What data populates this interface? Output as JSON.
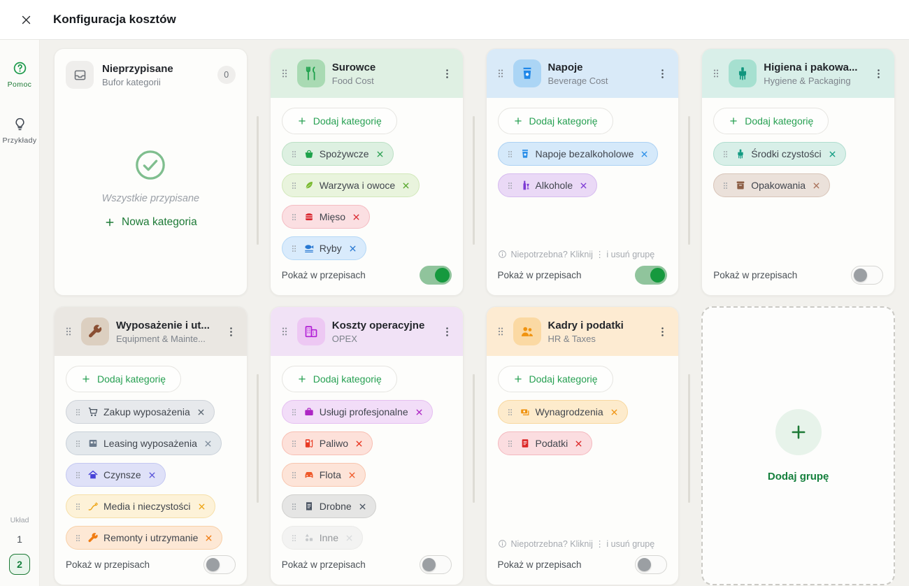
{
  "header": {
    "title": "Konfiguracja kosztów",
    "close_icon": "close-icon"
  },
  "sidebar": {
    "help_label": "Pomoc",
    "examples_label": "Przykłady",
    "layout_label": "Układ",
    "layout_option_1": "1",
    "layout_option_2": "2",
    "active_layout": "2",
    "help_icon": "question-circle-icon",
    "examples_icon": "lightbulb-icon"
  },
  "board": {
    "add_category_label": "Dodaj kategorię",
    "show_in_recipes_label": "Pokaż w przepisach",
    "delete_hint": "Niepotrzebna? Kliknij ⋮ i usuń grupę",
    "add_group_label": "Dodaj grupę",
    "unassigned": {
      "title": "Nieprzypisane",
      "subtitle": "Bufor kategorii",
      "count": "0",
      "icon": "inbox-icon",
      "empty_state_icon": "check-circle-icon",
      "empty_state_text": "Wszystkie przypisane",
      "new_category_label": "Nowa kategoria"
    },
    "accent_green": "#1d7a36",
    "groups": [
      {
        "title": "Surowce",
        "subtitle": "Food Cost",
        "icon": "utensils-icon",
        "colors": {
          "header": "#dff0e3",
          "tile": "#a9dab3",
          "icon": "#21a24e"
        },
        "toggle_on": true,
        "show_delete_hint": false,
        "chips": [
          {
            "label": "Spożywcze",
            "icon": "basket-icon",
            "bg": "#ddf0e1",
            "border": "#bce0c5",
            "icon_color": "#1ea24a",
            "x_color": "#2ba052",
            "faded": false
          },
          {
            "label": "Warzywa i owoce",
            "icon": "leaf-icon",
            "bg": "#e9f4dd",
            "border": "#d2e8ba",
            "icon_color": "#79ba2e",
            "x_color": "#57a82c",
            "faded": false
          },
          {
            "label": "Mięso",
            "icon": "burger-icon",
            "bg": "#fbdfe2",
            "border": "#f4bcc2",
            "icon_color": "#d9272e",
            "x_color": "#d9272e",
            "faded": false
          },
          {
            "label": "Ryby",
            "icon": "fish-icon",
            "bg": "#d9ebfc",
            "border": "#b5d8f6",
            "icon_color": "#2979d2",
            "x_color": "#2979d2",
            "faded": false
          }
        ]
      },
      {
        "title": "Napoje",
        "subtitle": "Beverage Cost",
        "icon": "cup-icon",
        "colors": {
          "header": "#d9eaf8",
          "tile": "#abd5f5",
          "icon": "#1f87e8"
        },
        "toggle_on": true,
        "show_delete_hint": true,
        "chips": [
          {
            "label": "Napoje bezalkoholowe",
            "icon": "cup-icon",
            "bg": "#d5e9fa",
            "border": "#abd1f3",
            "icon_color": "#2b8fe8",
            "x_color": "#2b8fe8",
            "faded": false
          },
          {
            "label": "Alkohole",
            "icon": "wine-icon",
            "bg": "#ead9f6",
            "border": "#d6bbef",
            "icon_color": "#7d3bd4",
            "x_color": "#7d3bd4",
            "faded": false
          }
        ]
      },
      {
        "title": "Higiena i pakowa...",
        "subtitle": "Hygiene & Packaging",
        "icon": "brush-icon",
        "colors": {
          "header": "#d9efe9",
          "tile": "#a6e0d0",
          "icon": "#11967e"
        },
        "toggle_on": false,
        "show_delete_hint": false,
        "chips": [
          {
            "label": "Środki czystości",
            "icon": "brush-icon",
            "bg": "#d8efe8",
            "border": "#b0ddcf",
            "icon_color": "#129b82",
            "x_color": "#129b82",
            "faded": false
          },
          {
            "label": "Opakowania",
            "icon": "box-icon",
            "bg": "#ebe1da",
            "border": "#d8c4b8",
            "icon_color": "#8d5f46",
            "x_color": "#a9715a",
            "faded": false
          }
        ]
      },
      {
        "title": "Wyposażenie i ut...",
        "subtitle": "Equipment & Mainte...",
        "icon": "wrench-icon",
        "colors": {
          "header": "#eae7e2",
          "tile": "#dccfc0",
          "icon": "#8a4f33"
        },
        "toggle_on": false,
        "show_delete_hint": false,
        "chips": [
          {
            "label": "Zakup wyposażenia",
            "icon": "cart-icon",
            "bg": "#e7e9ec",
            "border": "#ced3d9",
            "icon_color": "#47525f",
            "x_color": "#5b6672",
            "faded": false
          },
          {
            "label": "Leasing wyposażenia",
            "icon": "safe-icon",
            "bg": "#e3e8ec",
            "border": "#c9d1d9",
            "icon_color": "#6a7a8c",
            "x_color": "#7b8a9a",
            "faded": false
          },
          {
            "label": "Czynsze",
            "icon": "home-icon",
            "bg": "#dfe1f8",
            "border": "#c4c8f1",
            "icon_color": "#4742d8",
            "x_color": "#5a55d8",
            "faded": false
          },
          {
            "label": "Media i nieczystości",
            "icon": "plug-icon",
            "bg": "#fdf2d8",
            "border": "#f6dfa8",
            "icon_color": "#eda413",
            "x_color": "#eda413",
            "faded": false
          },
          {
            "label": "Remonty i utrzymanie",
            "icon": "wrench-icon",
            "bg": "#fde8d5",
            "border": "#f8d0a8",
            "icon_color": "#f07c12",
            "x_color": "#f07c12",
            "faded": false
          }
        ]
      },
      {
        "title": "Koszty operacyjne",
        "subtitle": "OPEX",
        "icon": "buildings-icon",
        "colors": {
          "header": "#f1e2f6",
          "tile": "#edc8f3",
          "icon": "#b21fd6"
        },
        "toggle_on": false,
        "show_delete_hint": false,
        "chips": [
          {
            "label": "Usługi profesjonalne",
            "icon": "briefcase-icon",
            "bg": "#f2ddf8",
            "border": "#e5bff1",
            "icon_color": "#ad26c4",
            "x_color": "#ad26c4",
            "faded": false
          },
          {
            "label": "Paliwo",
            "icon": "fuel-icon",
            "bg": "#fde1da",
            "border": "#f8beb2",
            "icon_color": "#e83a23",
            "x_color": "#e8321c",
            "faded": false
          },
          {
            "label": "Flota",
            "icon": "car-icon",
            "bg": "#fde4d8",
            "border": "#f8c5ae",
            "icon_color": "#ef5a2a",
            "x_color": "#ef5a2a",
            "faded": false
          },
          {
            "label": "Drobne",
            "icon": "receipt-icon",
            "bg": "#e5e5e4",
            "border": "#cfcfcd",
            "icon_color": "#4b5563",
            "x_color": "#4b5563",
            "faded": false
          },
          {
            "label": "Inne",
            "icon": "shapes-icon",
            "bg": "#ececeb",
            "border": "#dbdbd9",
            "icon_color": "#9aa0a6",
            "x_color": "#bcc1c6",
            "faded": true
          }
        ]
      },
      {
        "title": "Kadry i podatki",
        "subtitle": "HR & Taxes",
        "icon": "people-icon",
        "colors": {
          "header": "#fdebd2",
          "tile": "#fbd9a3",
          "icon": "#f0930f"
        },
        "toggle_on": false,
        "show_delete_hint": true,
        "chips": [
          {
            "label": "Wynagrodzenia",
            "icon": "money-icon",
            "bg": "#fdebcc",
            "border": "#f8d89f",
            "icon_color": "#ef9412",
            "x_color": "#ef9412",
            "faded": false
          },
          {
            "label": "Podatki",
            "icon": "tax-icon",
            "bg": "#fbdde0",
            "border": "#f4b8be",
            "icon_color": "#dc2626",
            "x_color": "#dc2626",
            "faded": false
          }
        ]
      }
    ]
  }
}
